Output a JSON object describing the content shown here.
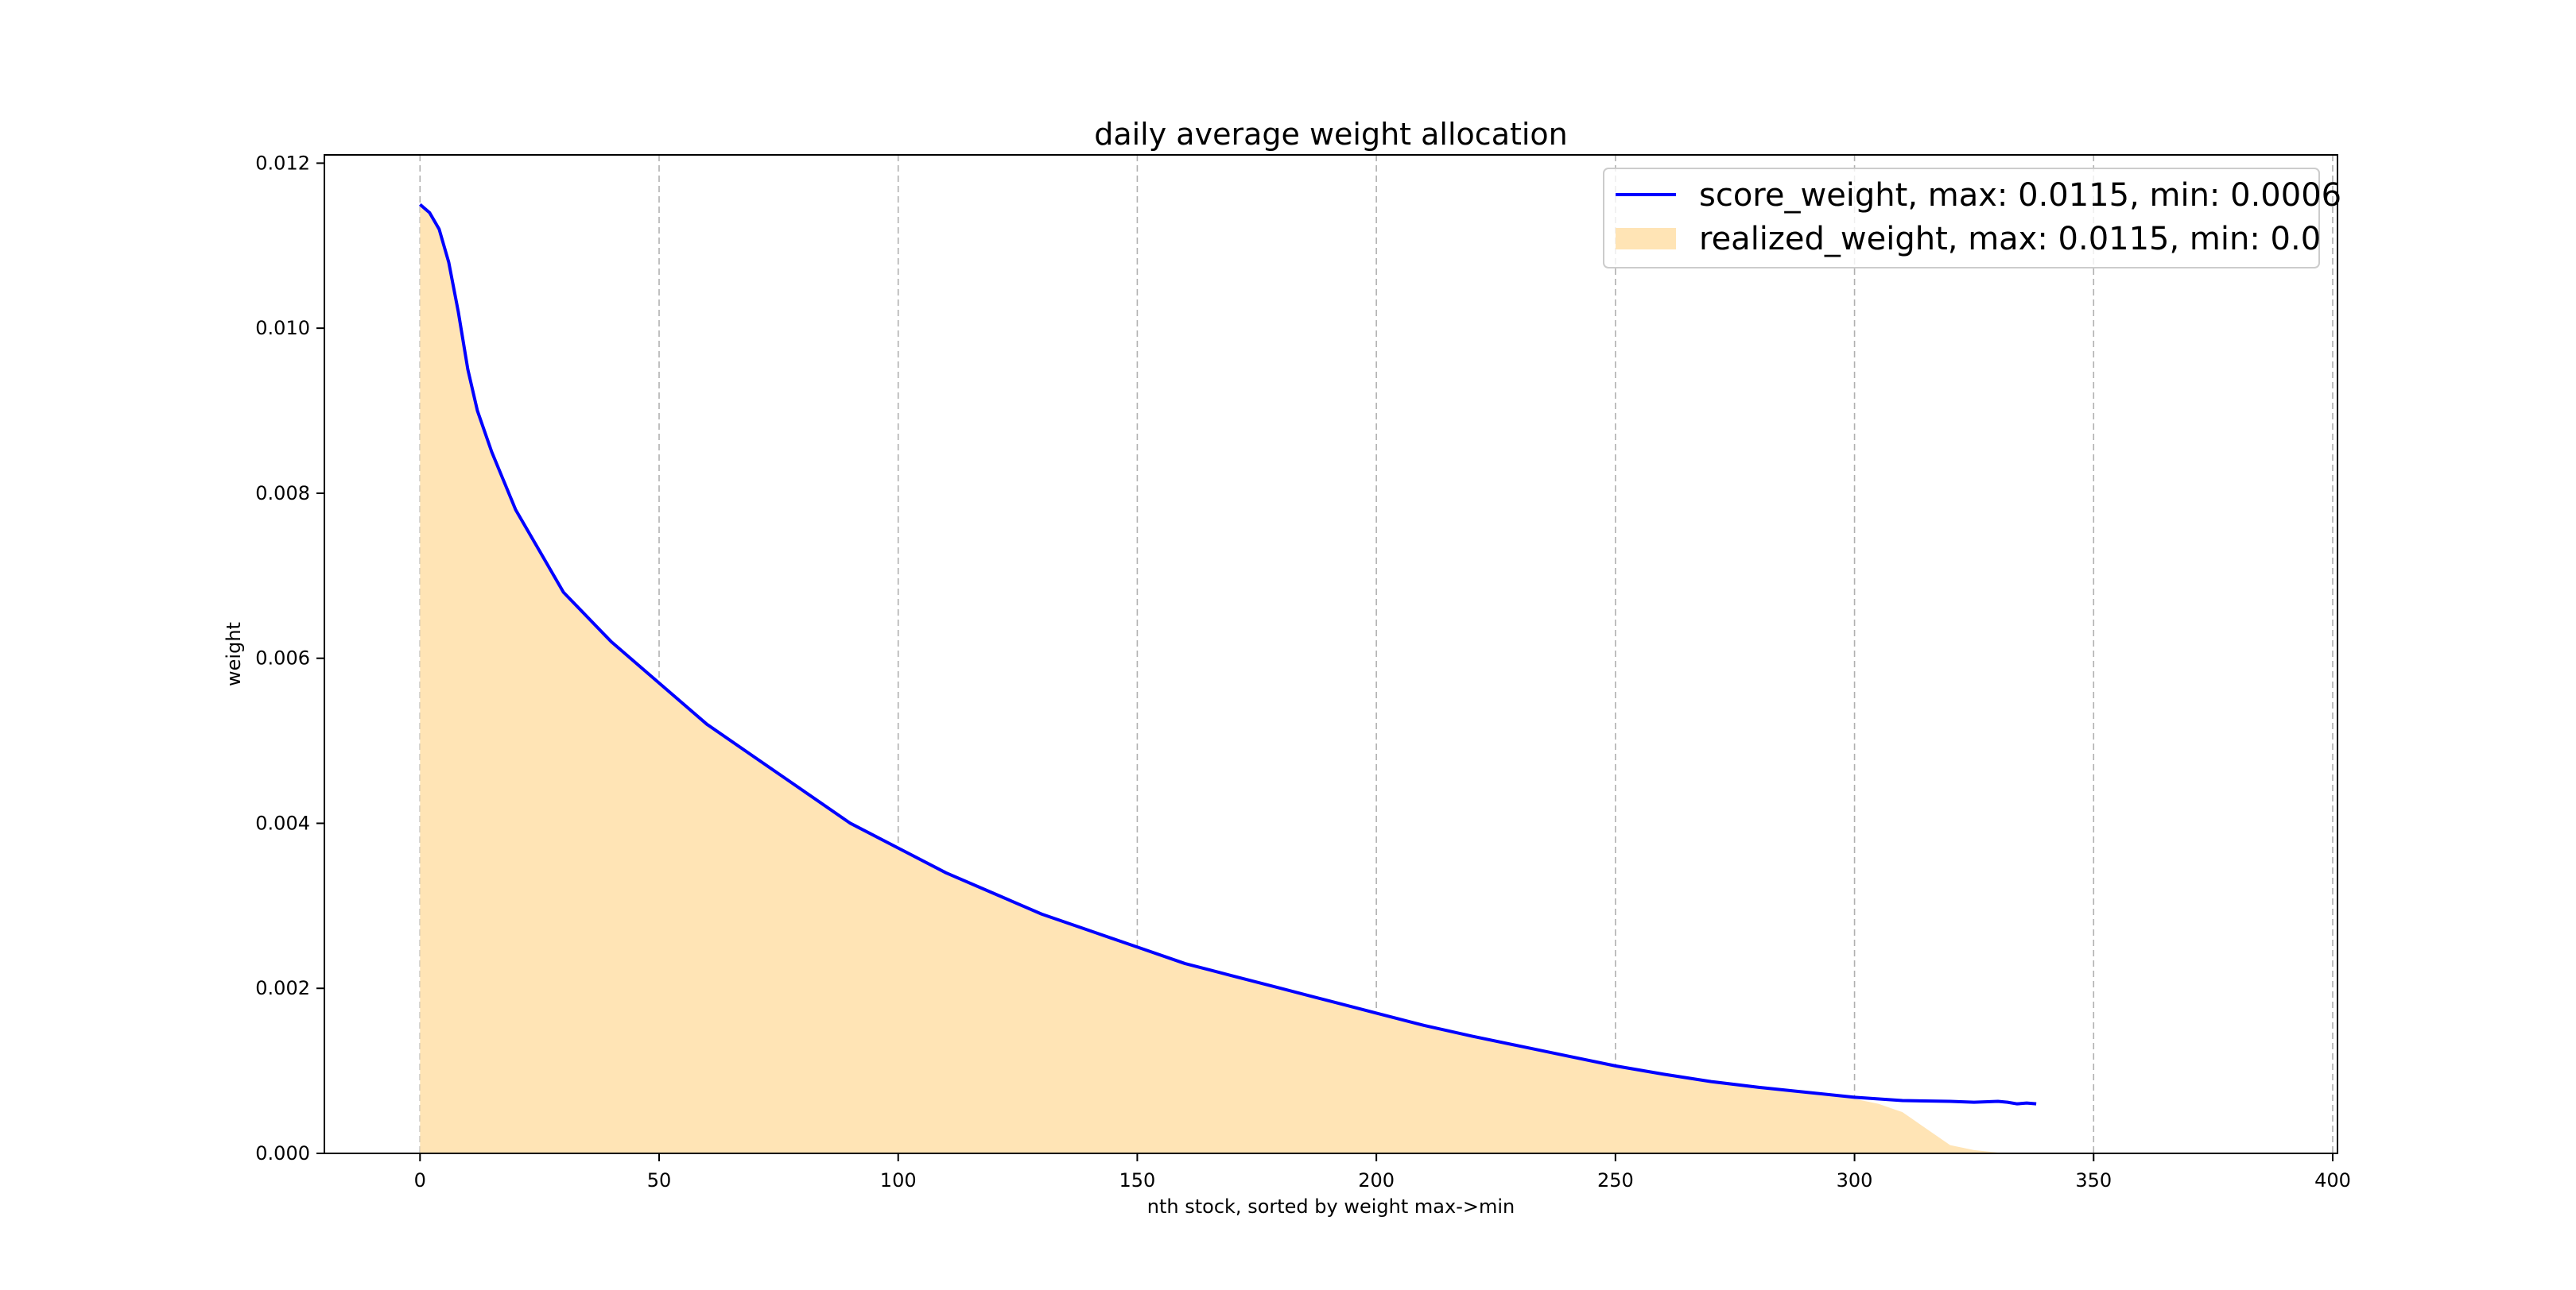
{
  "chart_data": {
    "type": "area",
    "title": "daily average weight allocation",
    "xlabel": "nth stock, sorted by weight max->min",
    "ylabel": "weight",
    "xlim": [
      -20,
      401
    ],
    "ylim": [
      0,
      0.0121
    ],
    "xticks": [
      0,
      50,
      100,
      150,
      200,
      250,
      300,
      350,
      400
    ],
    "xtick_labels": [
      "0",
      "50",
      "100",
      "150",
      "200",
      "250",
      "300",
      "350",
      "400"
    ],
    "yticks": [
      0.0,
      0.002,
      0.004,
      0.006,
      0.008,
      0.01,
      0.012
    ],
    "ytick_labels": [
      "0.000",
      "0.002",
      "0.004",
      "0.006",
      "0.008",
      "0.010",
      "0.012"
    ],
    "grid": "vertical dashed",
    "legend_position": "top-right",
    "series": [
      {
        "name": "score_weight, max: 0.0115, min: 0.0006",
        "kind": "line",
        "color": "#0000ff",
        "x": [
          0,
          2,
          4,
          6,
          8,
          10,
          12,
          15,
          20,
          25,
          30,
          40,
          50,
          60,
          70,
          80,
          90,
          100,
          110,
          120,
          130,
          140,
          150,
          160,
          170,
          180,
          190,
          200,
          210,
          220,
          230,
          240,
          250,
          260,
          270,
          280,
          290,
          300,
          310,
          320,
          325,
          330,
          332,
          334,
          336,
          338
        ],
        "y": [
          0.0115,
          0.0114,
          0.0112,
          0.0108,
          0.0102,
          0.0095,
          0.009,
          0.0085,
          0.0078,
          0.0073,
          0.0068,
          0.0062,
          0.0057,
          0.0052,
          0.0048,
          0.0044,
          0.004,
          0.0037,
          0.0034,
          0.00315,
          0.0029,
          0.0027,
          0.0025,
          0.0023,
          0.00215,
          0.002,
          0.00185,
          0.0017,
          0.00155,
          0.00142,
          0.0013,
          0.00118,
          0.00106,
          0.00096,
          0.00087,
          0.0008,
          0.00074,
          0.00068,
          0.00064,
          0.00063,
          0.00062,
          0.00063,
          0.00062,
          0.0006,
          0.00061,
          0.0006
        ]
      },
      {
        "name": "realized_weight, max: 0.0115, min: 0.0",
        "kind": "area",
        "color": "#ffe4b5",
        "x": [
          0,
          2,
          4,
          6,
          8,
          10,
          12,
          15,
          20,
          25,
          30,
          40,
          50,
          60,
          70,
          80,
          90,
          100,
          110,
          120,
          130,
          140,
          150,
          160,
          170,
          180,
          190,
          200,
          210,
          220,
          230,
          240,
          250,
          260,
          270,
          280,
          290,
          300,
          305,
          310,
          315,
          320,
          325,
          330,
          332
        ],
        "y": [
          0.0115,
          0.0114,
          0.0112,
          0.0108,
          0.0102,
          0.0095,
          0.009,
          0.0085,
          0.0078,
          0.0073,
          0.0068,
          0.0062,
          0.0057,
          0.0052,
          0.0048,
          0.0044,
          0.004,
          0.0037,
          0.0034,
          0.00315,
          0.0029,
          0.0027,
          0.0025,
          0.0023,
          0.00215,
          0.002,
          0.00185,
          0.0017,
          0.00155,
          0.00142,
          0.0013,
          0.00118,
          0.00106,
          0.00096,
          0.00087,
          0.0008,
          0.00074,
          0.00066,
          0.0006,
          0.0005,
          0.0003,
          0.0001,
          4e-05,
          1e-05,
          0.0
        ]
      }
    ]
  }
}
